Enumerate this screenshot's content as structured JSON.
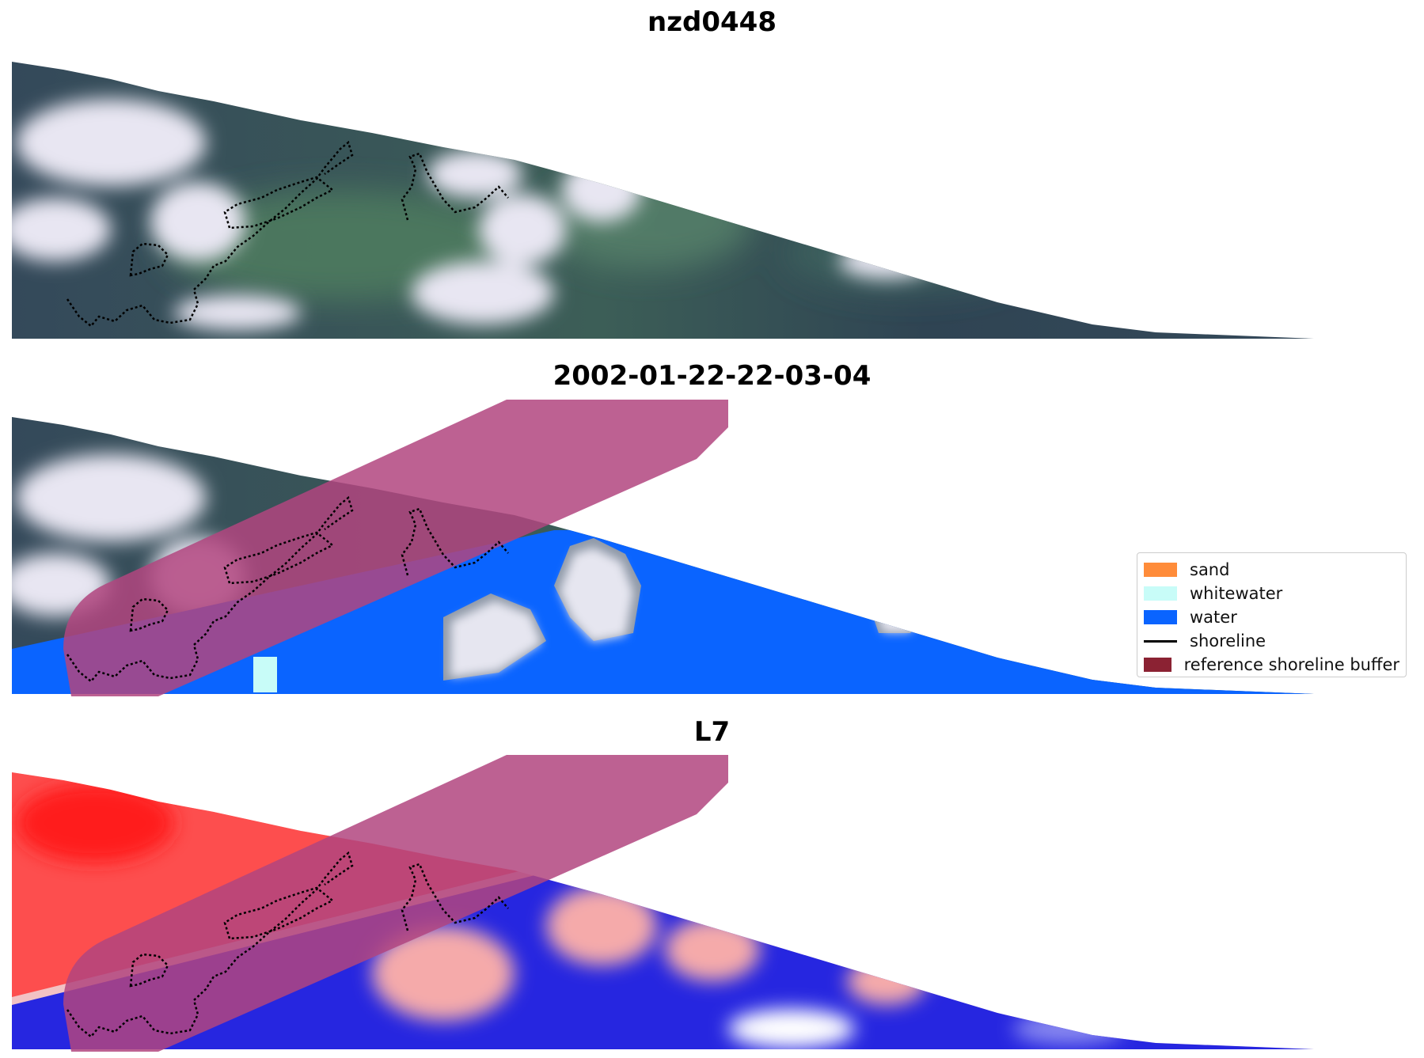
{
  "titles": {
    "image": "nzd0448",
    "classification": "2002-01-22-22-03-04",
    "index": "L7"
  },
  "legend": {
    "items": [
      {
        "label": "sand",
        "color": "#ff8c3a",
        "kind": "patch"
      },
      {
        "label": "whitewater",
        "color": "#c8fcf8",
        "kind": "patch"
      },
      {
        "label": "water",
        "color": "#0a64ff",
        "kind": "patch"
      },
      {
        "label": "shoreline",
        "color": "#000000",
        "kind": "line"
      },
      {
        "label": "reference shoreline buffer",
        "color": "#8b2233",
        "kind": "patch"
      }
    ]
  },
  "colors": {
    "buffer_overlay": "#b2457f",
    "water": "#0a64ff",
    "whitewater": "#c8fcf8",
    "land_dark": "#2e3f4c",
    "land_green": "#4f7660",
    "cloud": "#dcdde8",
    "index_red": "#ff2a2a",
    "index_blue": "#1f1fe6"
  }
}
